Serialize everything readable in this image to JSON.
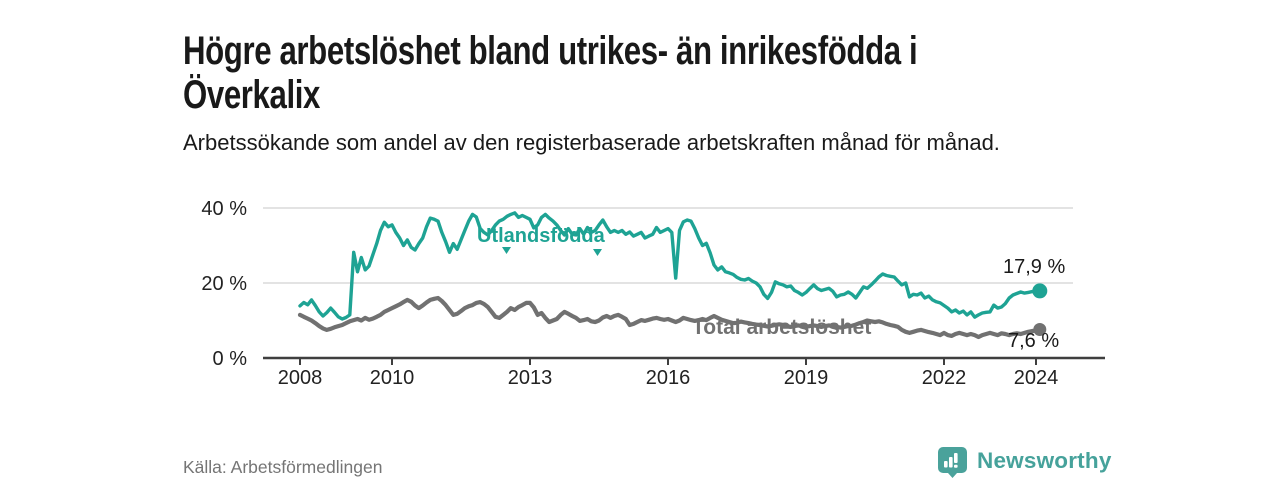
{
  "header": {
    "title": "Högre arbetslöshet bland utrikes- än inrikesfödda i Överkalix",
    "subtitle": "Arbetssökande som andel av den registerbaserade arbetskraften månad för månad."
  },
  "source": {
    "label": "Källa: Arbetsförmedlingen"
  },
  "branding": {
    "name": "Newsworthy",
    "icon": "newsworthy-bar-chart-pin-icon"
  },
  "colors": {
    "foreign_born": "#1ea394",
    "total": "#717171",
    "grid": "#dadada",
    "axis": "#3f3f3f",
    "text": "#222222",
    "muted": "#757575",
    "brand": "#46a29b"
  },
  "chart_data": {
    "type": "line",
    "unit": "%",
    "frequency": "monthly",
    "x_start": {
      "year": 2008,
      "month": 1
    },
    "x_end": {
      "year": 2024,
      "month": 2
    },
    "ylim": [
      0,
      42
    ],
    "grid": "horizontal",
    "legend_position": "inline-labels",
    "y_ticks": [
      {
        "label": "0 %",
        "value": 0
      },
      {
        "label": "20 %",
        "value": 20
      },
      {
        "label": "40 %",
        "value": 40
      }
    ],
    "x_ticks": [
      {
        "label": "2008",
        "year": 2008
      },
      {
        "label": "2010",
        "year": 2010
      },
      {
        "label": "2013",
        "year": 2013
      },
      {
        "label": "2016",
        "year": 2016
      },
      {
        "label": "2019",
        "year": 2019
      },
      {
        "label": "2022",
        "year": 2022
      },
      {
        "label": "2024",
        "year": 2024
      }
    ],
    "series": [
      {
        "name": "Utlandsfödda",
        "color": "#1ea394",
        "end_label": "17,9 %",
        "end_value": 17.9,
        "values": [
          13.9,
          14.8,
          14.2,
          15.5,
          14.0,
          12.3,
          11.2,
          12.1,
          13.3,
          12.2,
          11.0,
          10.4,
          10.8,
          11.5,
          28.2,
          23.0,
          26.8,
          23.5,
          24.5,
          27.5,
          30.5,
          34.0,
          36.2,
          35.0,
          35.5,
          33.5,
          32.0,
          30.0,
          31.5,
          29.5,
          28.8,
          30.5,
          32.0,
          35.0,
          37.3,
          37.0,
          36.5,
          33.5,
          31.0,
          28.2,
          30.5,
          29.0,
          31.5,
          34.0,
          36.5,
          38.3,
          37.6,
          34.5,
          33.5,
          32.8,
          34.0,
          35.5,
          36.5,
          37.0,
          37.8,
          38.3,
          38.7,
          37.5,
          38.0,
          37.5,
          37.0,
          34.7,
          35.5,
          37.5,
          38.3,
          37.3,
          36.5,
          35.5,
          34.0,
          32.8,
          34.5,
          33.0,
          32.8,
          34.5,
          33.0,
          34.8,
          33.5,
          34.0,
          35.5,
          36.8,
          35.0,
          33.5,
          34.0,
          33.5,
          34.0,
          33.0,
          33.6,
          32.5,
          33.0,
          33.5,
          32.0,
          32.5,
          33.0,
          34.8,
          33.5,
          34.0,
          34.5,
          33.5,
          21.3,
          34.0,
          36.3,
          36.8,
          36.5,
          34.5,
          32.0,
          30.0,
          30.6,
          28.0,
          24.8,
          23.5,
          24.3,
          23.0,
          22.7,
          22.3,
          21.5,
          21.0,
          20.8,
          21.2,
          20.5,
          20.0,
          19.0,
          17.0,
          15.9,
          17.5,
          20.3,
          19.8,
          19.5,
          19.0,
          19.2,
          18.0,
          17.5,
          16.8,
          17.5,
          18.5,
          19.5,
          18.5,
          18.0,
          18.3,
          18.6,
          17.8,
          16.3,
          16.8,
          17.0,
          17.6,
          17.0,
          16.0,
          17.5,
          19.0,
          18.6,
          19.5,
          20.5,
          21.6,
          22.4,
          22.0,
          21.8,
          21.6,
          20.5,
          19.5,
          20.0,
          16.3,
          17.0,
          16.8,
          17.3,
          16.0,
          16.5,
          15.5,
          15.0,
          14.7,
          14.0,
          13.3,
          12.3,
          12.8,
          12.0,
          12.5,
          11.5,
          12.3,
          10.9,
          11.5,
          12.0,
          12.2,
          12.3,
          14.1,
          13.3,
          13.6,
          14.5,
          16.0,
          16.8,
          17.2,
          17.6,
          17.3,
          17.5,
          17.7,
          17.6,
          17.9
        ]
      },
      {
        "name": "Total arbetslöshet",
        "color": "#717171",
        "end_label": "7,6 %",
        "end_value": 7.6,
        "values": [
          11.5,
          11.0,
          10.5,
          10.0,
          9.3,
          8.5,
          7.9,
          7.5,
          7.8,
          8.2,
          8.5,
          8.8,
          9.3,
          9.8,
          10.1,
          10.4,
          10.0,
          10.7,
          10.2,
          10.5,
          11.0,
          11.5,
          12.3,
          12.8,
          13.3,
          13.8,
          14.3,
          14.9,
          15.5,
          15.0,
          14.0,
          13.3,
          14.0,
          14.8,
          15.5,
          15.8,
          16.0,
          15.2,
          14.1,
          12.8,
          11.5,
          11.8,
          12.5,
          13.3,
          13.8,
          14.1,
          14.7,
          14.9,
          14.4,
          13.6,
          12.3,
          11.0,
          10.7,
          11.5,
          12.3,
          13.3,
          12.8,
          13.6,
          14.1,
          14.7,
          14.7,
          13.5,
          11.5,
          12.0,
          10.7,
          9.6,
          10.0,
          10.4,
          11.5,
          12.3,
          11.8,
          11.2,
          10.7,
          9.9,
          10.1,
          10.4,
          9.8,
          9.6,
          10.0,
          10.8,
          11.2,
          10.7,
          11.2,
          11.5,
          11.0,
          10.4,
          8.8,
          9.1,
          9.6,
          10.1,
          9.9,
          10.2,
          10.5,
          10.7,
          10.4,
          10.2,
          10.4,
          10.0,
          9.6,
          10.0,
          10.7,
          10.4,
          10.1,
          9.9,
          10.1,
          10.4,
          10.1,
          10.7,
          11.2,
          10.7,
          10.2,
          9.9,
          9.6,
          9.3,
          9.4,
          9.7,
          9.5,
          9.3,
          9.1,
          8.9,
          8.8,
          8.6,
          8.4,
          8.6,
          8.8,
          9.0,
          8.8,
          8.5,
          8.3,
          8.5,
          8.7,
          8.5,
          8.3,
          8.5,
          8.7,
          8.5,
          8.3,
          8.5,
          8.7,
          8.5,
          8.3,
          8.1,
          8.3,
          8.5,
          8.6,
          8.9,
          9.3,
          9.6,
          10.0,
          9.8,
          9.6,
          9.8,
          9.5,
          9.1,
          8.8,
          8.6,
          8.3,
          7.5,
          7.0,
          6.7,
          7.0,
          7.3,
          7.5,
          7.2,
          6.9,
          6.7,
          6.4,
          6.1,
          6.7,
          6.1,
          5.9,
          6.4,
          6.7,
          6.4,
          6.1,
          6.4,
          6.1,
          5.6,
          6.1,
          6.4,
          6.7,
          6.4,
          6.1,
          6.6,
          6.4,
          6.1,
          6.4,
          6.6,
          6.4,
          6.7,
          7.0,
          7.2,
          7.3,
          7.6
        ]
      }
    ]
  }
}
